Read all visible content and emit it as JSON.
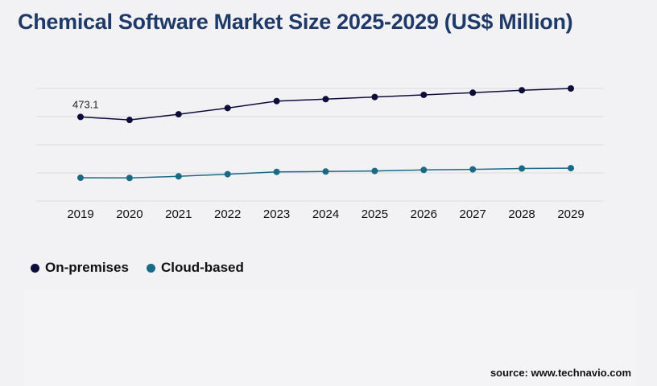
{
  "title": "Chemical Software Market Size 2025-2029 (US$ Million)",
  "source": "source: www.technavio.com",
  "chart_data": {
    "type": "line",
    "title": "Chemical Software Market Size 2025-2029 (US$ Million)",
    "x": [
      "2019",
      "2020",
      "2021",
      "2022",
      "2023",
      "2024",
      "2025",
      "2026",
      "2027",
      "2028",
      "2029"
    ],
    "ylim": [
      0,
      633
    ],
    "grid": true,
    "legend_position": "bottom-left",
    "series": [
      {
        "name": "On-premises",
        "color": "#0d0d3a",
        "values": [
          473.1,
          456,
          488,
          523,
          562,
          573,
          585,
          597,
          609,
          623,
          633
        ]
      },
      {
        "name": "Cloud-based",
        "color": "#1a6a86",
        "values": [
          131,
          130,
          139,
          151,
          164,
          166,
          169,
          175,
          178,
          183,
          185
        ]
      }
    ],
    "annotations": [
      {
        "series": 0,
        "index": 0,
        "text": "473.1"
      }
    ]
  }
}
